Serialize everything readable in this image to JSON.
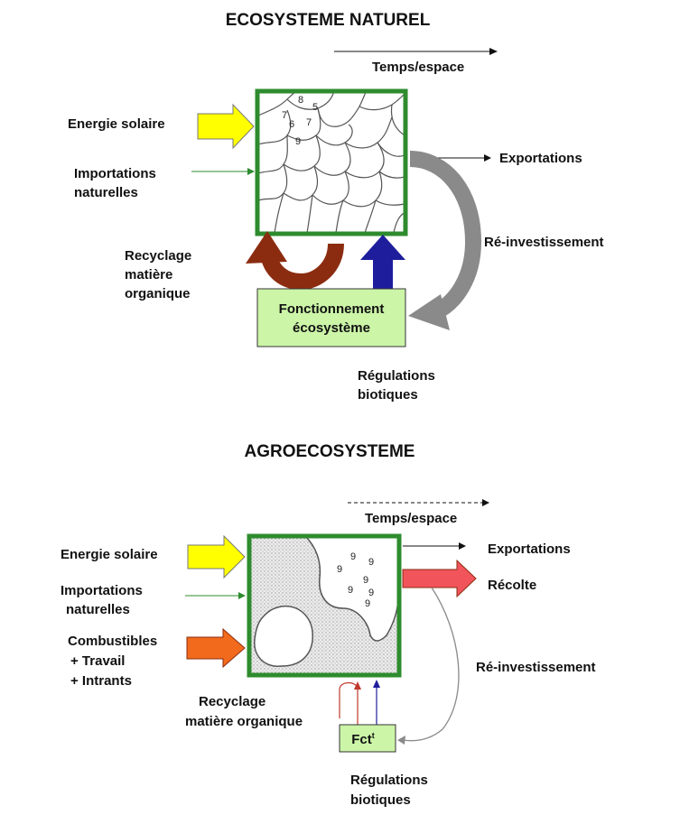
{
  "colors": {
    "frame_green": "#2e8b2e",
    "box_fill": "#ccf5a8",
    "sun_yellow": "#ffff00",
    "brown": "#8b2c10",
    "blue": "#1e1e9c",
    "grey_arrow": "#8a8a8a",
    "orange": "#f26a1b",
    "red_harvest": "#f2545b"
  },
  "natural": {
    "title": "ECOSYSTEME NATUREL",
    "time": "Temps/espace",
    "solar": "Energie solaire",
    "imports": [
      "Importations",
      "naturelles"
    ],
    "exports": "Exportations",
    "reinvest": "Ré-investissement",
    "recycling": [
      "Recyclage",
      "matière",
      "organique"
    ],
    "function_box": [
      "Fonctionnement",
      "écosystème"
    ],
    "regulations": [
      "Régulations",
      "biotiques"
    ],
    "species_numbers": [
      "8",
      "5",
      "7",
      "6",
      "7",
      "9"
    ]
  },
  "agro": {
    "title": "AGROECOSYSTEME",
    "time": "Temps/espace",
    "solar": "Energie solaire",
    "imports": [
      "Importations",
      "naturelles"
    ],
    "inputs": [
      "Combustibles",
      "+ Travail",
      "+ Intrants"
    ],
    "exports": "Exportations",
    "harvest": "Récolte",
    "reinvest": "Ré-investissement",
    "recycling": [
      "Recyclage",
      "matière organique"
    ],
    "function_box": "Fct",
    "function_sup": "t",
    "regulations": [
      "Régulations",
      "biotiques"
    ],
    "species_numbers": [
      "9",
      "9",
      "9",
      "9",
      "9",
      "9",
      "9"
    ]
  }
}
